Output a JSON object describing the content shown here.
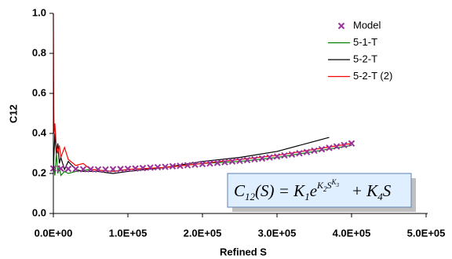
{
  "chart_data": {
    "type": "line",
    "x_label": "Refined S",
    "y_label": "C12",
    "annotation": [
      "C",
      "12",
      "(S) = K",
      "1",
      "e",
      "K",
      "2",
      "S",
      "K",
      "3",
      "   + K",
      "4",
      "S"
    ],
    "xlim": [
      0,
      500000
    ],
    "xticks": [
      {
        "value": 0,
        "label": "0.0E+00"
      },
      {
        "value": 100000,
        "label": "1.0E+05"
      },
      {
        "value": 200000,
        "label": "2.0E+05"
      },
      {
        "value": 300000,
        "label": "3.0E+05"
      },
      {
        "value": 400000,
        "label": "4.0E+05"
      },
      {
        "value": 500000,
        "label": "5.0E+05"
      }
    ],
    "ylim": [
      0,
      1
    ],
    "yticks": [
      {
        "value": 0,
        "label": "0.0"
      },
      0.2,
      0.4,
      0.6,
      0.8,
      {
        "value": 1,
        "label": "1.0"
      }
    ],
    "grid": false,
    "legend": "upper right",
    "series": [
      {
        "name": "Model",
        "color": "#993399",
        "marker": "x",
        "x": [
          0,
          10000,
          20000,
          30000,
          40000,
          50000,
          60000,
          70000,
          80000,
          90000,
          100000,
          110000,
          120000,
          130000,
          140000,
          150000,
          160000,
          170000,
          180000,
          190000,
          200000,
          210000,
          220000,
          230000,
          240000,
          250000,
          260000,
          270000,
          280000,
          290000,
          300000,
          310000,
          320000,
          330000,
          340000,
          350000,
          360000,
          370000,
          380000,
          390000,
          400000
        ],
        "values": [
          0.225,
          0.224,
          0.223,
          0.222,
          0.221,
          0.221,
          0.22,
          0.22,
          0.221,
          0.222,
          0.223,
          0.225,
          0.227,
          0.229,
          0.231,
          0.233,
          0.236,
          0.238,
          0.241,
          0.244,
          0.247,
          0.25,
          0.253,
          0.256,
          0.26,
          0.263,
          0.267,
          0.271,
          0.275,
          0.28,
          0.285,
          0.29,
          0.295,
          0.301,
          0.307,
          0.314,
          0.321,
          0.328,
          0.335,
          0.342,
          0.35
        ]
      },
      {
        "name": "5-1-T",
        "color": "#008000",
        "x": [
          0,
          2000,
          4000,
          6000,
          8000,
          10000,
          15000,
          20000,
          30000,
          50000,
          80000,
          100000,
          150000,
          200000,
          250000,
          300000,
          350000,
          400000
        ],
        "values": [
          0.25,
          0.19,
          0.3,
          0.2,
          0.24,
          0.19,
          0.21,
          0.2,
          0.21,
          0.22,
          0.21,
          0.22,
          0.23,
          0.25,
          0.26,
          0.28,
          0.31,
          0.34
        ]
      },
      {
        "name": "5-2-T",
        "color": "#000000",
        "x": [
          0,
          2000,
          4000,
          6000,
          8000,
          10000,
          15000,
          20000,
          30000,
          40000,
          60000,
          80000,
          100000,
          150000,
          200000,
          250000,
          300000,
          350000,
          370000
        ],
        "values": [
          0.22,
          0.4,
          0.3,
          0.35,
          0.25,
          0.28,
          0.22,
          0.26,
          0.22,
          0.21,
          0.21,
          0.2,
          0.21,
          0.23,
          0.26,
          0.28,
          0.31,
          0.36,
          0.38
        ]
      },
      {
        "name": "5-2-T (2)",
        "color": "#ff0000",
        "x": [
          0,
          500,
          1000,
          2000,
          4000,
          6000,
          8000,
          10000,
          15000,
          20000,
          30000,
          40000,
          50000,
          80000,
          100000,
          150000,
          200000,
          250000,
          300000,
          350000,
          400000
        ],
        "values": [
          1,
          0.53,
          0.4,
          0.45,
          0.33,
          0.3,
          0.34,
          0.28,
          0.33,
          0.27,
          0.24,
          0.25,
          0.22,
          0.21,
          0.22,
          0.23,
          0.25,
          0.27,
          0.29,
          0.32,
          0.35
        ]
      }
    ]
  }
}
